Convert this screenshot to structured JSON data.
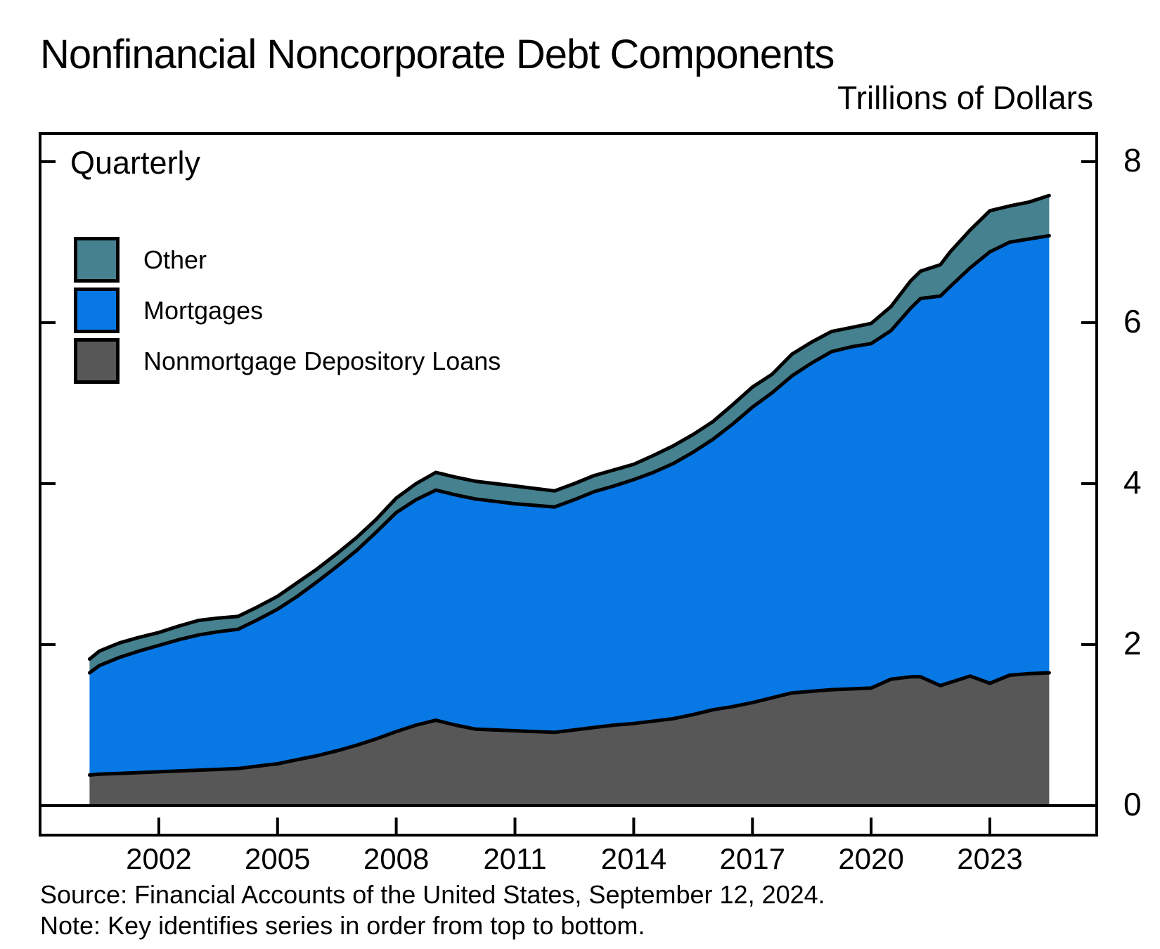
{
  "title": "Nonfinancial Noncorporate Debt Components",
  "units_label": "Trillions of Dollars",
  "frequency_label": "Quarterly",
  "source_line": "Source: Financial Accounts of the United States, September 12, 2024.",
  "note_line": "Note: Key identifies series in order from top to bottom.",
  "colors": {
    "other": "#45818E",
    "mortgages": "#0778E4",
    "nonmortgage_depository_loans": "#575757",
    "line": "#000000"
  },
  "legend": [
    {
      "label": "Other",
      "color": "#45818E"
    },
    {
      "label": "Mortgages",
      "color": "#0778E4"
    },
    {
      "label": "Nonmortgage Depository Loans",
      "color": "#575757"
    }
  ],
  "chart_data": {
    "type": "area",
    "stacked": true,
    "title": "Nonfinancial Noncorporate Debt Components",
    "ylabel": "Trillions of Dollars",
    "xlabel": "",
    "frequency": "Quarterly",
    "legend_position": "top-left",
    "legend_order_note": "Key identifies series in order from top to bottom",
    "xlim": [
      1999.0,
      2025.7
    ],
    "ylim": [
      0,
      8
    ],
    "x_ticks": [
      2002,
      2005,
      2008,
      2011,
      2014,
      2017,
      2020,
      2023
    ],
    "y_ticks": [
      0,
      2,
      4,
      6,
      8
    ],
    "x": [
      2000.25,
      2000.5,
      2001,
      2001.5,
      2002,
      2002.5,
      2003,
      2003.5,
      2004,
      2004.5,
      2005,
      2005.5,
      2006,
      2006.5,
      2007,
      2007.5,
      2008,
      2008.5,
      2009,
      2009.5,
      2010,
      2010.5,
      2011,
      2011.5,
      2012,
      2012.5,
      2013,
      2013.5,
      2014,
      2014.5,
      2015,
      2015.5,
      2016,
      2016.5,
      2017,
      2017.5,
      2018,
      2018.5,
      2019,
      2019.5,
      2020,
      2020.5,
      2021,
      2021.25,
      2021.75,
      2022,
      2022.5,
      2023,
      2023.5,
      2024,
      2024.5
    ],
    "series": [
      {
        "name": "Other",
        "values": [
          0.17,
          0.18,
          0.18,
          0.17,
          0.16,
          0.17,
          0.18,
          0.17,
          0.16,
          0.16,
          0.16,
          0.17,
          0.16,
          0.16,
          0.16,
          0.16,
          0.18,
          0.2,
          0.22,
          0.22,
          0.22,
          0.22,
          0.22,
          0.21,
          0.2,
          0.2,
          0.2,
          0.2,
          0.19,
          0.21,
          0.22,
          0.22,
          0.22,
          0.24,
          0.25,
          0.23,
          0.27,
          0.26,
          0.25,
          0.24,
          0.25,
          0.3,
          0.34,
          0.34,
          0.39,
          0.43,
          0.47,
          0.51,
          0.45,
          0.46,
          0.5
        ]
      },
      {
        "name": "Mortgages",
        "values": [
          1.27,
          1.35,
          1.44,
          1.51,
          1.57,
          1.63,
          1.68,
          1.71,
          1.73,
          1.82,
          1.92,
          2.03,
          2.16,
          2.29,
          2.42,
          2.57,
          2.72,
          2.8,
          2.86,
          2.86,
          2.86,
          2.84,
          2.82,
          2.81,
          2.8,
          2.86,
          2.93,
          2.97,
          3.03,
          3.09,
          3.17,
          3.26,
          3.36,
          3.51,
          3.67,
          3.79,
          3.94,
          4.08,
          4.2,
          4.25,
          4.28,
          4.33,
          4.58,
          4.7,
          4.84,
          4.92,
          5.07,
          5.36,
          5.38,
          5.4,
          5.43
        ]
      },
      {
        "name": "Nonmortgage Depository Loans",
        "values": [
          0.38,
          0.39,
          0.4,
          0.41,
          0.42,
          0.43,
          0.44,
          0.45,
          0.46,
          0.49,
          0.52,
          0.57,
          0.62,
          0.68,
          0.75,
          0.83,
          0.92,
          1.0,
          1.06,
          1.0,
          0.95,
          0.94,
          0.93,
          0.92,
          0.91,
          0.94,
          0.97,
          1.0,
          1.02,
          1.05,
          1.08,
          1.13,
          1.19,
          1.23,
          1.28,
          1.34,
          1.4,
          1.42,
          1.44,
          1.45,
          1.46,
          1.57,
          1.6,
          1.6,
          1.49,
          1.53,
          1.61,
          1.52,
          1.62,
          1.64,
          1.65
        ]
      }
    ]
  }
}
